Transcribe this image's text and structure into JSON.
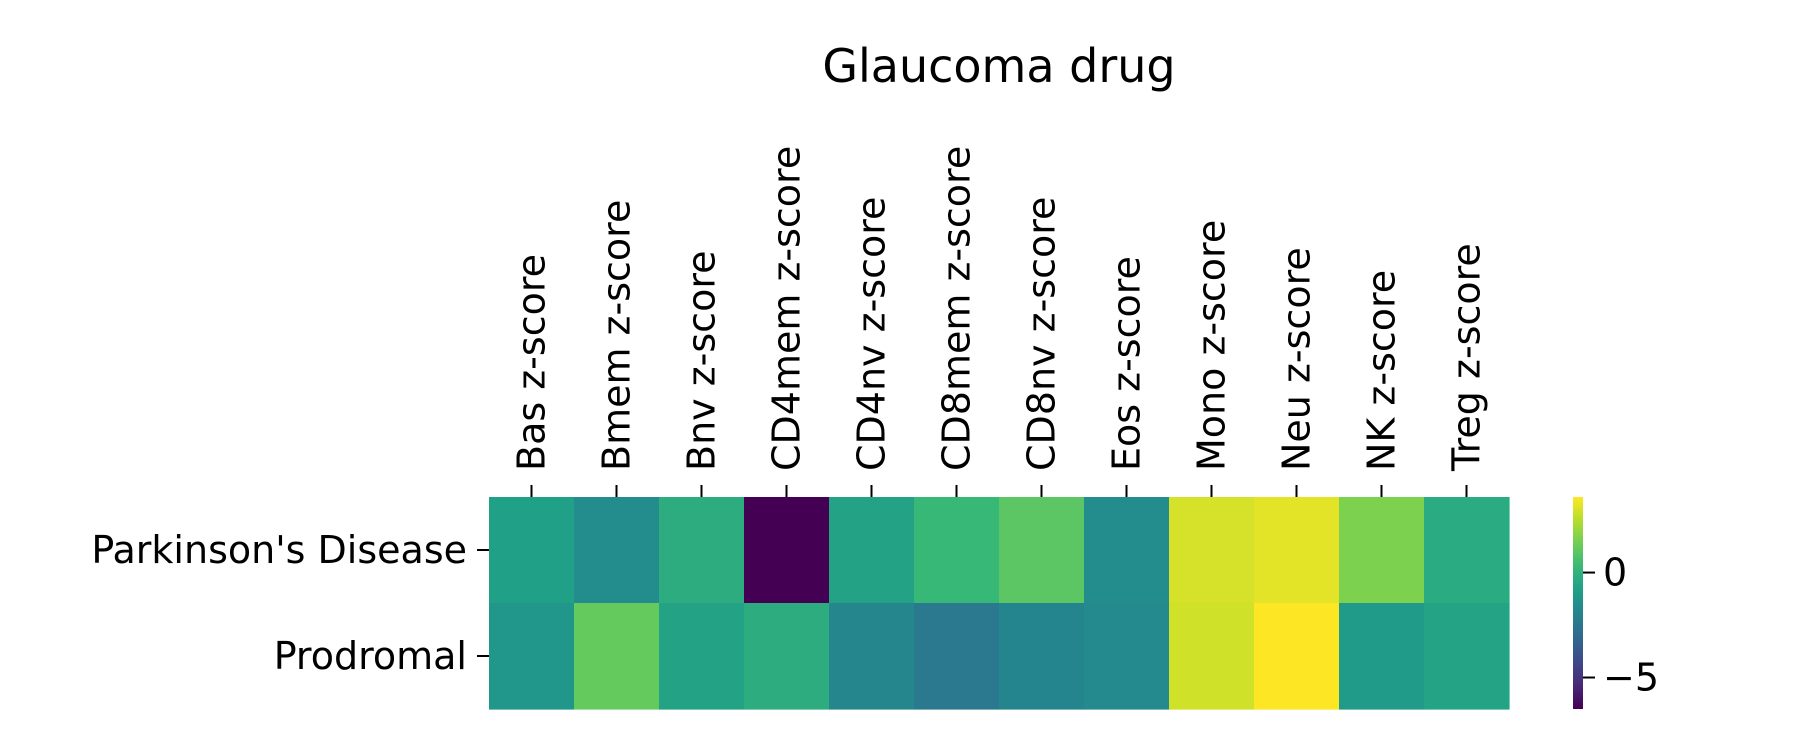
{
  "chart_data": {
    "type": "heatmap",
    "title": "Glaucoma drug",
    "xlabel": "",
    "ylabel": "",
    "columns": [
      "Bas z-score",
      "Bmem z-score",
      "Bnv z-score",
      "CD4mem z-score",
      "CD4nv z-score",
      "CD8mem z-score",
      "CD8nv z-score",
      "Eos z-score",
      "Mono z-score",
      "Neu z-score",
      "NK z-score",
      "Treg z-score"
    ],
    "rows": [
      "Parkinson's Disease",
      "Prodromal"
    ],
    "values": [
      [
        -0.8,
        -1.6,
        -0.2,
        -6.5,
        -0.7,
        0.3,
        1.0,
        -1.6,
        3.0,
        3.2,
        1.6,
        -0.3
      ],
      [
        -1.2,
        1.2,
        -0.7,
        -0.2,
        -1.8,
        -2.4,
        -1.9,
        -1.7,
        2.9,
        3.6,
        -1.0,
        -0.6
      ]
    ],
    "colormap": "viridis",
    "colorbar": {
      "vmin": -6.5,
      "vmax": 3.6,
      "ticks": [
        0,
        -5
      ],
      "tick_labels": [
        "0",
        "−5"
      ]
    },
    "x_tick_position": "top"
  }
}
